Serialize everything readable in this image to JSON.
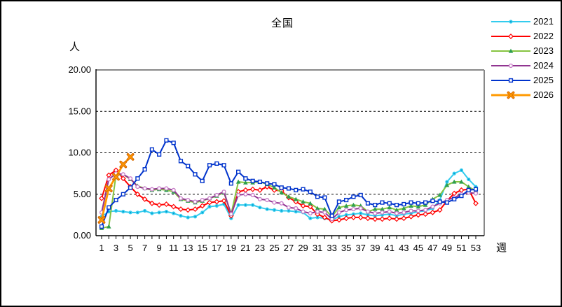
{
  "chart_data": {
    "type": "line",
    "title": "全国",
    "xlabel": "週",
    "ylabel": "人",
    "ylim": [
      0,
      20
    ],
    "y_ticks": [
      "0.00",
      "5.00",
      "10.00",
      "15.00",
      "20.00"
    ],
    "grid": "horizontal dashed lines at 5, 10, 15",
    "legend_position": "top-right",
    "x": [
      1,
      2,
      3,
      4,
      5,
      6,
      7,
      8,
      9,
      10,
      11,
      12,
      13,
      14,
      15,
      16,
      17,
      18,
      19,
      20,
      21,
      22,
      23,
      24,
      25,
      26,
      27,
      28,
      29,
      30,
      31,
      32,
      33,
      34,
      35,
      36,
      37,
      38,
      39,
      40,
      41,
      42,
      43,
      44,
      45,
      46,
      47,
      48,
      49,
      50,
      51,
      52,
      53
    ],
    "x_tick_labels": [
      1,
      3,
      5,
      7,
      9,
      11,
      13,
      15,
      17,
      19,
      21,
      23,
      25,
      27,
      29,
      31,
      33,
      35,
      37,
      39,
      41,
      43,
      45,
      47,
      49,
      51,
      53
    ],
    "series": [
      {
        "name": "2021",
        "color": "#33CCEE",
        "marker": "circle",
        "marker_color": "#0099CC",
        "values": [
          2.3,
          2.9,
          3.0,
          2.9,
          2.8,
          2.8,
          3.0,
          2.7,
          2.8,
          2.9,
          2.7,
          2.4,
          2.2,
          2.3,
          2.8,
          3.5,
          3.6,
          3.8,
          2.1,
          3.7,
          3.7,
          3.7,
          3.4,
          3.2,
          3.1,
          3.0,
          3.0,
          2.9,
          2.8,
          2.1,
          2.2,
          2.1,
          1.9,
          2.3,
          2.5,
          2.6,
          2.7,
          2.5,
          2.4,
          2.5,
          2.6,
          2.4,
          2.6,
          2.7,
          2.9,
          3.0,
          3.3,
          4.3,
          6.5,
          7.5,
          7.9,
          6.8,
          5.9
        ]
      },
      {
        "name": "2022",
        "color": "#FF0000",
        "marker": "diamond",
        "marker_color": "#FF0000",
        "values": [
          4.5,
          7.3,
          7.9,
          6.9,
          5.9,
          5.0,
          4.4,
          3.9,
          3.7,
          3.8,
          3.5,
          3.2,
          3.1,
          3.2,
          3.6,
          4.0,
          4.1,
          4.2,
          2.4,
          5.3,
          5.5,
          5.6,
          5.5,
          5.9,
          5.5,
          5.4,
          4.6,
          4.1,
          3.6,
          3.5,
          2.6,
          2.2,
          1.8,
          1.9,
          2.1,
          2.2,
          2.2,
          2.1,
          2.0,
          2.0,
          2.1,
          2.0,
          2.1,
          2.3,
          2.5,
          2.6,
          2.8,
          3.1,
          4.2,
          5.1,
          5.5,
          5.6,
          3.9
        ]
      },
      {
        "name": "2023",
        "color": "#86C440",
        "marker": "triangle",
        "marker_color": "#2E9E4F",
        "values": [
          0.9,
          1.1,
          7.3,
          7.4,
          6.8,
          6.0,
          5.7,
          5.5,
          5.6,
          5.5,
          5.3,
          4.4,
          4.2,
          4.0,
          4.2,
          4.5,
          4.8,
          5.2,
          2.6,
          6.5,
          6.4,
          6.4,
          6.5,
          6.2,
          5.8,
          5.2,
          4.7,
          4.4,
          4.1,
          3.9,
          3.3,
          3.2,
          2.3,
          3.4,
          3.6,
          3.7,
          3.6,
          2.9,
          3.2,
          3.2,
          3.4,
          3.1,
          3.3,
          3.6,
          3.5,
          3.7,
          4.4,
          4.9,
          6.1,
          6.5,
          6.5,
          5.9,
          5.4
        ]
      },
      {
        "name": "2024",
        "color": "#913591",
        "marker": "open-circle",
        "marker_color": "#C97FC9",
        "values": [
          2.8,
          6.8,
          7.5,
          7.4,
          6.9,
          5.9,
          5.7,
          5.6,
          5.7,
          5.7,
          5.5,
          4.5,
          4.3,
          4.1,
          4.3,
          4.5,
          4.9,
          5.3,
          2.6,
          4.9,
          5.0,
          4.9,
          4.4,
          4.3,
          4.0,
          3.9,
          3.4,
          3.3,
          2.9,
          2.7,
          2.9,
          2.8,
          2.0,
          2.8,
          3.1,
          3.2,
          3.3,
          2.9,
          2.7,
          2.8,
          2.9,
          2.7,
          2.8,
          3.0,
          3.0,
          3.1,
          3.5,
          3.9,
          4.3,
          4.6,
          5.0,
          5.2,
          5.1
        ]
      },
      {
        "name": "2025",
        "color": "#0033CC",
        "marker": "square",
        "marker_color": "#0033CC",
        "values": [
          1.1,
          3.4,
          4.3,
          5.0,
          5.8,
          6.9,
          8.0,
          10.4,
          9.8,
          11.5,
          11.2,
          9.0,
          8.4,
          7.4,
          6.6,
          8.5,
          8.7,
          8.5,
          6.3,
          7.7,
          6.9,
          6.6,
          6.5,
          6.3,
          6.2,
          5.8,
          5.7,
          5.5,
          5.6,
          5.3,
          4.7,
          4.6,
          2.4,
          4.1,
          4.3,
          4.7,
          4.9,
          3.9,
          3.7,
          4.0,
          3.9,
          3.7,
          3.8,
          4.0,
          3.9,
          4.0,
          4.2,
          4.1,
          4.0,
          4.4,
          4.8,
          5.5,
          5.6
        ]
      },
      {
        "name": "2026",
        "color": "#FF9900",
        "marker": "x-cross",
        "marker_color": "#D96B00",
        "values": [
          1.9,
          5.7,
          7.1,
          8.6,
          9.5
        ]
      }
    ]
  }
}
